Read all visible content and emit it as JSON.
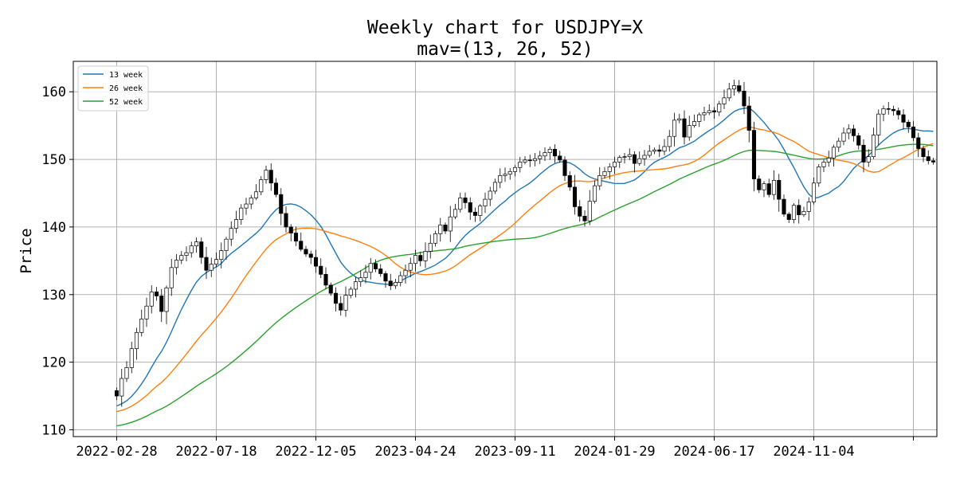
{
  "chart_data": {
    "type": "candlestick",
    "title": "Weekly chart for USDJPY=X",
    "subtitle": "mav=(13, 26, 52)",
    "ylabel": "Price",
    "xlabel": "",
    "ylim": [
      109,
      164.5
    ],
    "yticks": [
      110,
      120,
      130,
      140,
      150,
      160
    ],
    "xticks": [
      {
        "index": 0,
        "label": "2022-02-28"
      },
      {
        "index": 20,
        "label": "2022-07-18"
      },
      {
        "index": 40,
        "label": "2022-12-05"
      },
      {
        "index": 60,
        "label": "2023-04-24"
      },
      {
        "index": 80,
        "label": "2023-09-11"
      },
      {
        "index": 100,
        "label": "2024-01-29"
      },
      {
        "index": 120,
        "label": "2024-06-17"
      },
      {
        "index": 140,
        "label": "2024-11-04"
      },
      {
        "index": 160,
        "label": ""
      }
    ],
    "grid": true,
    "legend_position": "top-left",
    "colors": {
      "up": "#ffffff",
      "down": "#000000",
      "wick": "#000000",
      "ma13": "#1f77b4",
      "ma26": "#ff7f0e",
      "ma52": "#2ca02c",
      "grid": "#b0b0b0"
    },
    "close": [
      115.0,
      117.6,
      119.2,
      122.0,
      124.4,
      126.4,
      128.3,
      130.4,
      129.8,
      127.5,
      131.0,
      134.0,
      135.1,
      135.8,
      136.2,
      137.2,
      137.8,
      135.5,
      133.6,
      134.5,
      135.2,
      136.5,
      138.2,
      139.8,
      141.1,
      142.8,
      143.4,
      144.3,
      145.2,
      147.0,
      148.4,
      146.5,
      144.8,
      142.0,
      140.0,
      139.1,
      137.9,
      136.7,
      136.0,
      135.5,
      134.2,
      133.0,
      131.4,
      130.2,
      128.7,
      127.7,
      129.9,
      130.8,
      131.9,
      132.5,
      133.3,
      134.6,
      133.8,
      133.1,
      132.0,
      131.3,
      131.8,
      132.8,
      133.6,
      134.6,
      135.8,
      135.0,
      136.4,
      137.6,
      139.0,
      140.3,
      139.4,
      141.5,
      142.6,
      144.3,
      143.6,
      142.2,
      141.7,
      143.1,
      144.1,
      145.3,
      146.6,
      147.6,
      147.8,
      148.2,
      148.8,
      149.6,
      149.9,
      149.8,
      150.1,
      150.5,
      151.0,
      151.5,
      150.5,
      149.9,
      147.6,
      145.9,
      143.0,
      141.6,
      140.9,
      143.8,
      146.1,
      147.6,
      148.2,
      148.9,
      149.6,
      150.3,
      150.4,
      150.7,
      149.4,
      150.1,
      150.6,
      151.2,
      151.4,
      151.2,
      151.9,
      153.4,
      155.8,
      156.0,
      153.3,
      155.0,
      155.6,
      156.6,
      156.9,
      157.2,
      157.0,
      158.2,
      159.1,
      160.4,
      160.9,
      160.1,
      157.9,
      154.3,
      147.1,
      145.5,
      146.4,
      144.8,
      146.9,
      144.1,
      141.9,
      141.1,
      143.2,
      141.8,
      142.3,
      143.7,
      146.5,
      148.9,
      149.6,
      150.2,
      151.8,
      152.7,
      153.9,
      154.5,
      153.5,
      152.1,
      149.6,
      150.4,
      153.6,
      156.7,
      157.5,
      157.4,
      157.2,
      156.6,
      155.5,
      154.8,
      153.2,
      151.6,
      150.4,
      149.8,
      149.6
    ]
  },
  "legend": {
    "items": [
      {
        "label": "13 week",
        "color": "#1f77b4"
      },
      {
        "label": "26 week",
        "color": "#ff7f0e"
      },
      {
        "label": "52 week",
        "color": "#2ca02c"
      }
    ]
  }
}
